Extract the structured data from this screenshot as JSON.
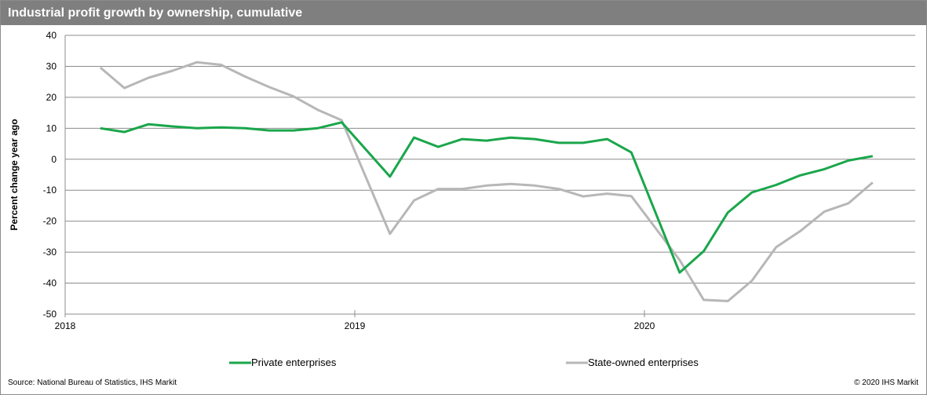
{
  "chart_data": {
    "type": "line",
    "title": "Industrial profit growth by ownership, cumulative",
    "ylabel": "Percent change year ago",
    "xlabel": "",
    "ylim": [
      -50,
      40
    ],
    "yticks": [
      40,
      30,
      20,
      10,
      0,
      -10,
      -20,
      -30,
      -40,
      -50
    ],
    "xticks": [
      {
        "label": "2018",
        "date": "2018-01"
      },
      {
        "label": "2019",
        "date": "2019-01"
      },
      {
        "label": "2020",
        "date": "2020-01"
      }
    ],
    "x": [
      "2018-02",
      "2018-03",
      "2018-04",
      "2018-05",
      "2018-06",
      "2018-07",
      "2018-08",
      "2018-09",
      "2018-10",
      "2018-11",
      "2018-12",
      "2019-02",
      "2019-03",
      "2019-04",
      "2019-05",
      "2019-06",
      "2019-07",
      "2019-08",
      "2019-09",
      "2019-10",
      "2019-11",
      "2019-12",
      "2020-02",
      "2020-03",
      "2020-04",
      "2020-05",
      "2020-06",
      "2020-07",
      "2020-08",
      "2020-09",
      "2020-10",
      "2020-11"
    ],
    "series": [
      {
        "name": "Private enterprises",
        "color": "#1aa64b",
        "values": [
          10.0,
          8.8,
          11.3,
          10.6,
          10.0,
          10.3,
          10.0,
          9.3,
          9.3,
          10.0,
          11.9,
          -5.6,
          7.0,
          4.0,
          6.5,
          6.0,
          7.0,
          6.5,
          5.3,
          5.3,
          6.5,
          2.2,
          -36.6,
          -29.7,
          -17.2,
          -10.7,
          -8.3,
          -5.2,
          -3.2,
          -0.4,
          1.0,
          null
        ]
      },
      {
        "name": "State-owned enterprises",
        "color": "#b7b7b7",
        "values": [
          29.6,
          23.0,
          26.3,
          28.6,
          31.3,
          30.5,
          26.7,
          23.3,
          20.3,
          16.0,
          12.6,
          -24.1,
          -13.3,
          -9.6,
          -9.6,
          -8.5,
          -8.0,
          -8.5,
          -9.6,
          -12.0,
          -11.1,
          -11.9,
          -32.5,
          -45.4,
          -45.8,
          -39.2,
          -28.4,
          -23.2,
          -16.9,
          -14.2,
          -7.5,
          null
        ]
      }
    ],
    "grid": true,
    "legend": "bottom"
  },
  "footer": {
    "source": "Source: National Bureau of Statistics, IHS Markit",
    "copyright": "© 2020 IHS Markit"
  }
}
